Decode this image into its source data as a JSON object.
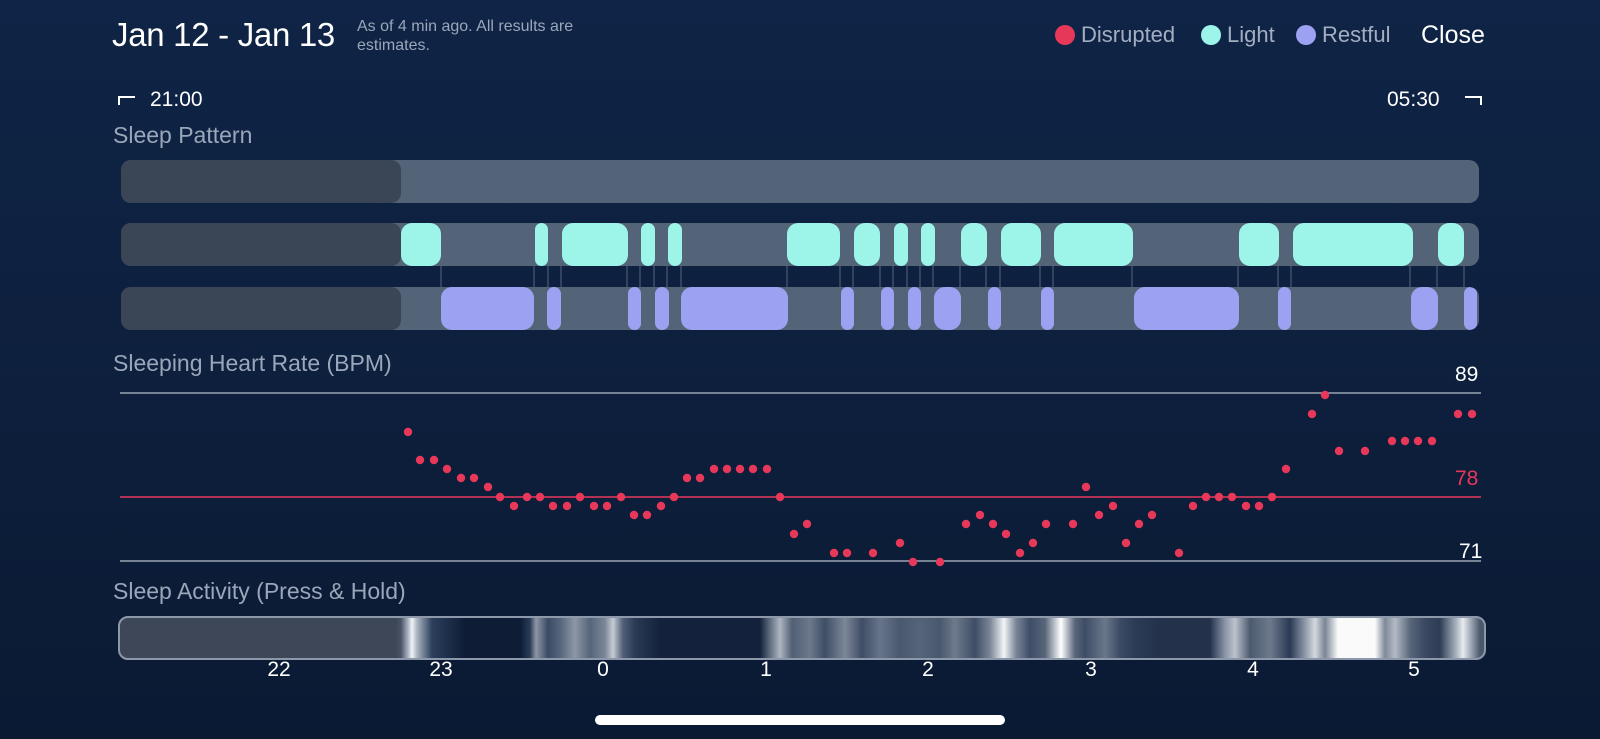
{
  "header": {
    "date_range": "Jan 12 - Jan 13",
    "as_of": "As of 4 min ago. All results are estimates.",
    "close_label": "Close"
  },
  "legend": [
    {
      "label": "Disrupted",
      "color": "#e8385a"
    },
    {
      "label": "Light",
      "color": "#9cf5e8"
    },
    {
      "label": "Restful",
      "color": "#9ca2f1"
    }
  ],
  "time_range": {
    "start": "21:00",
    "end": "05:30"
  },
  "sleep_pattern": {
    "title": "Sleep Pattern",
    "colors": {
      "track": "#536478",
      "inactive": "#3a4556",
      "light": "#9cf5e8",
      "restful": "#9ca2f1"
    }
  },
  "heart_rate": {
    "title": "Sleeping Heart Rate (BPM)",
    "max": "89",
    "avg": "78",
    "min": "71",
    "dot_color": "#e8385a"
  },
  "activity": {
    "title": "Sleep Activity (Press & Hold)"
  },
  "hour_labels": [
    "22",
    "23",
    "0",
    "1",
    "2",
    "3",
    "4",
    "5"
  ]
}
